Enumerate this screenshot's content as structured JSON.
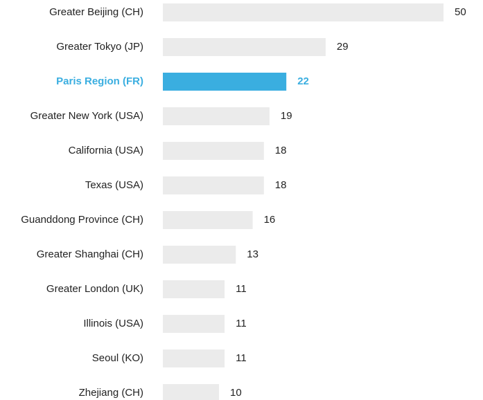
{
  "chart_data": {
    "type": "bar",
    "orientation": "horizontal",
    "categories": [
      "Greater Beijing (CH)",
      "Greater Tokyo (JP)",
      "Paris Region (FR)",
      "Greater New York (USA)",
      "California (USA)",
      "Texas (USA)",
      "Guanddong Province (CH)",
      "Greater Shanghai (CH)",
      "Greater London (UK)",
      "Illinois (USA)",
      "Seoul (KO)",
      "Zhejiang (CH)"
    ],
    "values": [
      50,
      29,
      22,
      19,
      18,
      18,
      16,
      13,
      11,
      11,
      11,
      10
    ],
    "color": "#ebebeb",
    "colors": [
      "#ebebeb",
      "#ebebeb",
      "#3aaee0",
      "#ebebeb",
      "#ebebeb",
      "#ebebeb",
      "#ebebeb",
      "#ebebeb",
      "#ebebeb",
      "#ebebeb",
      "#ebebeb",
      "#ebebeb"
    ]
  }
}
